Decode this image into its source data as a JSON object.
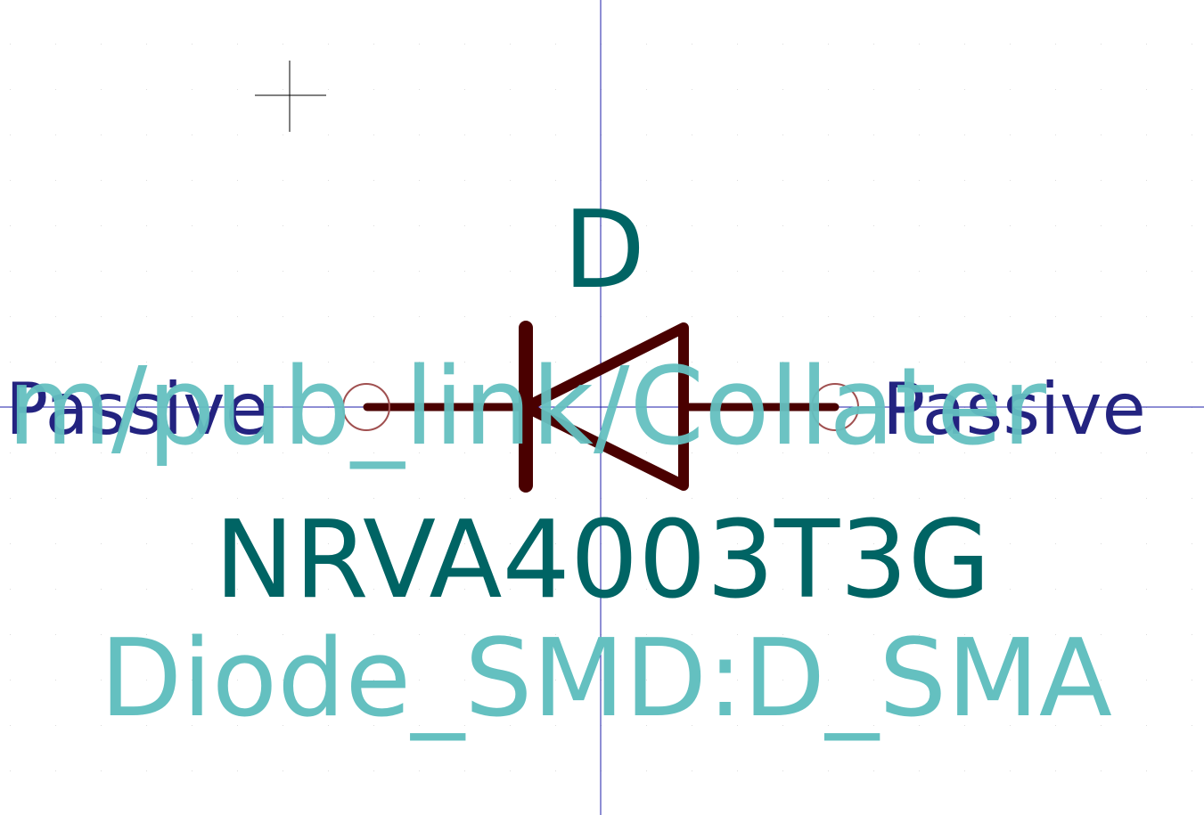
{
  "symbol": {
    "reference": "D",
    "value": "NRVA4003T3G",
    "footprint": "Diode_SMD:D_SMA",
    "datasheet_overlay": "m/pub_link/Collater",
    "pin_left": {
      "electrical_type": "Passive"
    },
    "pin_right": {
      "electrical_type": "Passive"
    }
  },
  "colors": {
    "background": "#ffffff",
    "grid_dot": "#dcdcdc",
    "axis": "#1c1caa",
    "cursor": "#000000",
    "body": "#4a0000",
    "pin_circle": "#a05050",
    "pin_type_text": "#232380",
    "reference_text": "#006464",
    "value_text": "#006464",
    "field_text": "#64c0c0"
  },
  "icons": {
    "cursor": "crosshair-icon",
    "diode": "diode-body-icon"
  }
}
